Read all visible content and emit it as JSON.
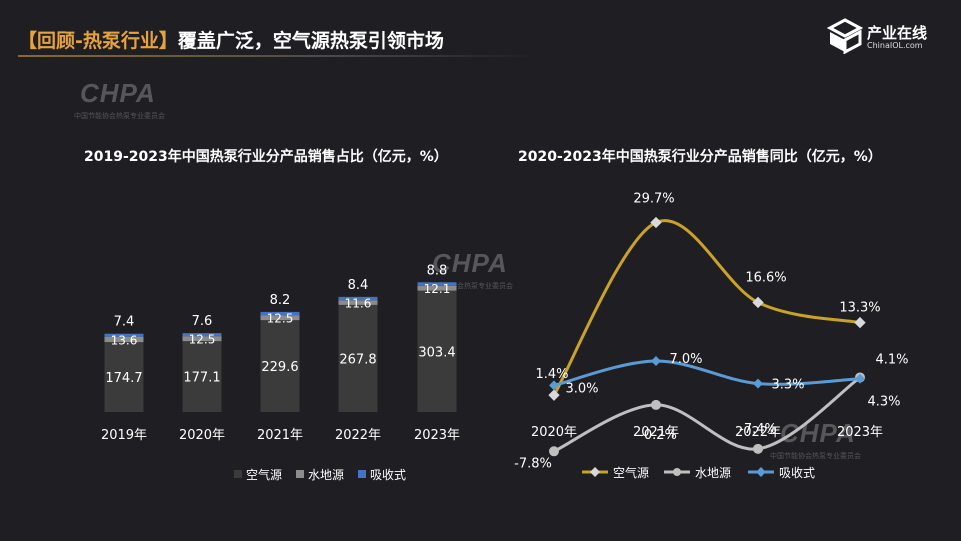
{
  "header": {
    "tag": "【回顾-热泵行业】",
    "title": "覆盖广泛，空气源热泵引领市场"
  },
  "logo": {
    "name": "产业在线",
    "url_text": "ChinaIOL.com"
  },
  "watermark": {
    "big": "CHPA",
    "small": "中国节能协会热泵专业委员会"
  },
  "colors": {
    "background": "#1f1f23",
    "air_source_bar": "#3b3b3b",
    "water_ground_bar": "#8c8c8c",
    "absorption_bar": "#4472c4",
    "air_source_line": "#c9a227",
    "water_ground_line": "#bfbfbf",
    "absorption_line": "#5b9bd5"
  },
  "chart_data": [
    {
      "type": "bar",
      "stacked": true,
      "title": "2019-2023年中国热泵行业分产品销售占比（亿元，%）",
      "categories": [
        "2019年",
        "2020年",
        "2021年",
        "2022年",
        "2023年"
      ],
      "series": [
        {
          "name": "空气源",
          "values": [
            174.7,
            177.1,
            229.6,
            267.8,
            303.4
          ]
        },
        {
          "name": "水地源",
          "values": [
            13.6,
            12.5,
            12.5,
            11.6,
            12.1
          ]
        },
        {
          "name": "吸收式",
          "values": [
            7.4,
            7.6,
            8.2,
            8.4,
            8.8
          ]
        }
      ],
      "legend": "bottom"
    },
    {
      "type": "line",
      "title": "2020-2023年中国热泵行业分产品销售同比（亿元，%）",
      "categories": [
        "2020年",
        "2021年",
        "2022年",
        "2023年"
      ],
      "series": [
        {
          "name": "空气源",
          "values": [
            1.4,
            29.7,
            16.6,
            13.3
          ],
          "labels": [
            "1.4%",
            "29.7%",
            "16.6%",
            "13.3%"
          ]
        },
        {
          "name": "水地源",
          "values": [
            -7.8,
            -0.2,
            -7.4,
            4.3
          ],
          "labels": [
            "-7.8%",
            "-0.2%",
            "-7.4%",
            "4.3%"
          ]
        },
        {
          "name": "吸收式",
          "values": [
            3.0,
            7.0,
            3.3,
            4.1
          ],
          "labels": [
            "3.0%",
            "7.0%",
            "3.3%",
            "4.1%"
          ]
        }
      ],
      "legend": "bottom"
    }
  ]
}
